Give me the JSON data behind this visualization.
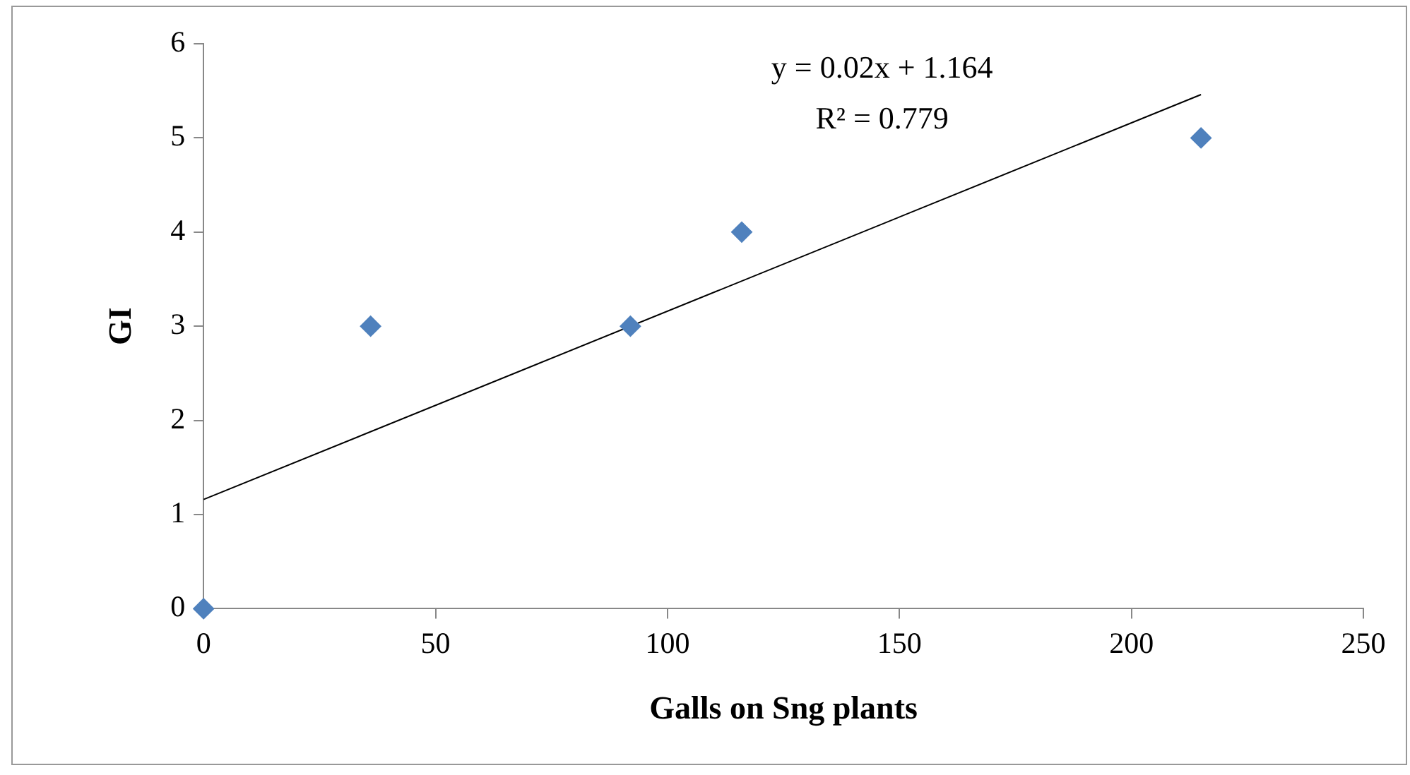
{
  "chart_data": {
    "type": "scatter",
    "xlabel": "Galls on Sng plants",
    "ylabel": "GI",
    "xlim": [
      0,
      250
    ],
    "xticks": [
      0,
      50,
      100,
      150,
      200,
      250
    ],
    "ylim": [
      0,
      6
    ],
    "yticks": [
      0,
      1,
      2,
      3,
      4,
      5,
      6
    ],
    "grid": false,
    "legend": false,
    "marker": "diamond",
    "series": [
      {
        "type": "scatter",
        "color": "#4f81bd",
        "x": [
          0,
          36,
          92,
          116,
          215
        ],
        "values": [
          0,
          3,
          3,
          4,
          5
        ]
      },
      {
        "type": "line",
        "color": "#000000",
        "marker": "none",
        "x": [
          0,
          215
        ],
        "values": [
          1.16,
          5.46
        ]
      }
    ],
    "annotations": [
      "y = 0.02x + 1.164",
      "R² = 0.779"
    ]
  }
}
